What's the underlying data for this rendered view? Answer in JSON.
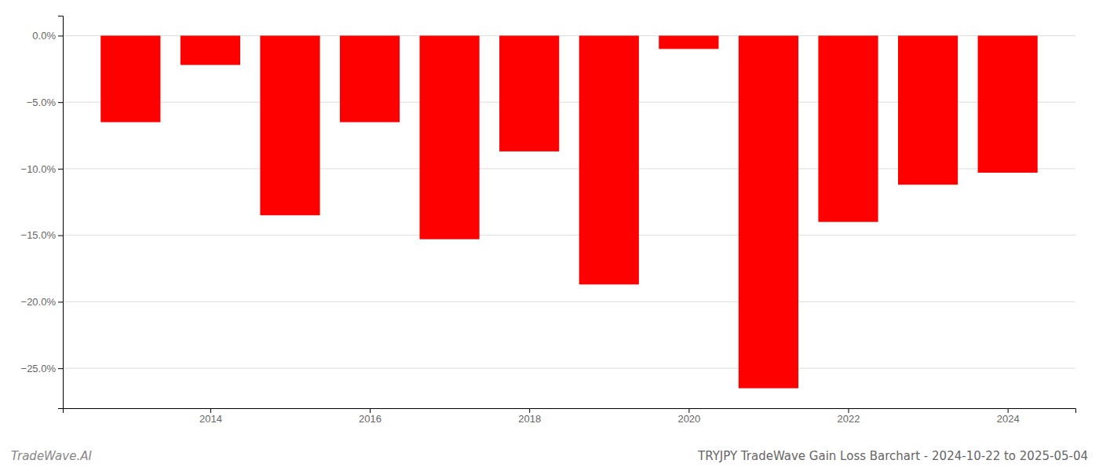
{
  "chart_data": {
    "type": "bar",
    "title": "TRYJPY TradeWave Gain Loss Barchart - 2024-10-22 to 2025-05-04",
    "annotations": [
      "TradeWave.AI"
    ],
    "x": [
      2013,
      2014,
      2015,
      2016,
      2017,
      2018,
      2019,
      2020,
      2021,
      2022,
      2023,
      2024
    ],
    "values": [
      -6.5,
      -2.2,
      -13.5,
      -6.5,
      -15.3,
      -8.7,
      -18.7,
      -1.0,
      -26.5,
      -14.0,
      -11.2,
      -10.3
    ],
    "color": "#ff0000",
    "xlim": [
      2012.15,
      2024.85
    ],
    "xticks": [
      2014,
      2016,
      2018,
      2020,
      2022,
      2024
    ],
    "ylim": [
      -28,
      1.5
    ],
    "yticks": [
      {
        "value": 0.0,
        "label": "0.0%"
      },
      {
        "value": -5.0,
        "label": "−5.0%"
      },
      {
        "value": -10.0,
        "label": "−10.0%"
      },
      {
        "value": -15.0,
        "label": "−15.0%"
      },
      {
        "value": -20.0,
        "label": "−20.0%"
      },
      {
        "value": -25.0,
        "label": "−25.0%"
      }
    ],
    "grid": true
  }
}
